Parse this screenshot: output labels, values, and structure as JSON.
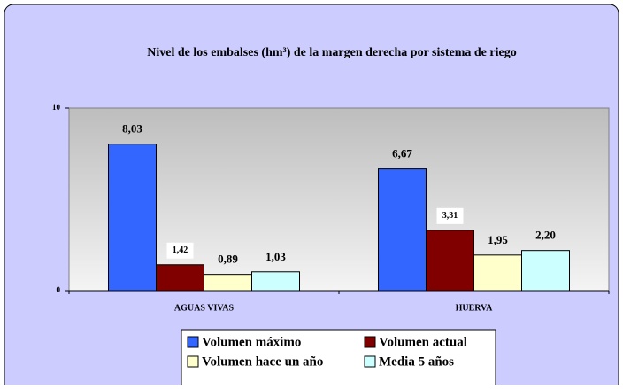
{
  "chart_data": {
    "type": "bar",
    "title": "Nivel de los embalses (hm³) de la margen derecha por sistema de riego",
    "categories": [
      "AGUAS VIVAS",
      "HUERVA"
    ],
    "series": [
      {
        "name": "Volumen máximo",
        "color": "#3366ff",
        "values": [
          8.03,
          6.67
        ],
        "value_labels": [
          "8,03",
          "6,67"
        ]
      },
      {
        "name": "Volumen actual",
        "color": "#800000",
        "values": [
          1.42,
          3.31
        ],
        "value_labels": [
          "1,42",
          "3,31"
        ]
      },
      {
        "name": "Volumen hace un año",
        "color": "#ffffcc",
        "values": [
          0.89,
          1.95
        ],
        "value_labels": [
          "0,89",
          "1,95"
        ]
      },
      {
        "name": "Media 5 años",
        "color": "#ccffff",
        "values": [
          1.03,
          2.2
        ],
        "value_labels": [
          "1,03",
          "2,20"
        ]
      }
    ],
    "ylim": [
      0,
      10
    ],
    "yticks": [
      0,
      10
    ],
    "legend": "bottom"
  }
}
